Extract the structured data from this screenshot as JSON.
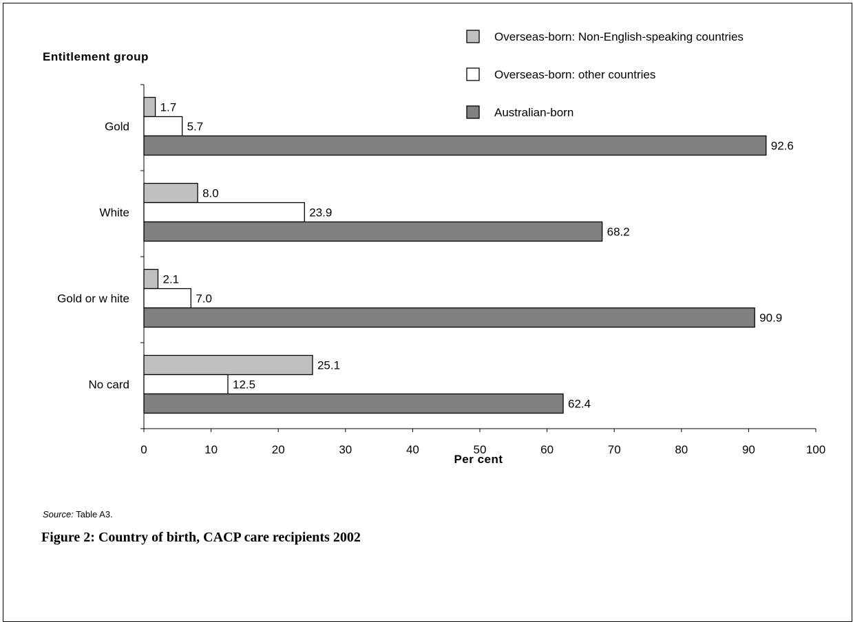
{
  "chart_data": {
    "type": "bar",
    "orientation": "horizontal",
    "ylabel": "Entitlement group",
    "xlabel": "Per cent",
    "xlim": [
      0,
      100
    ],
    "xticks": [
      0,
      10,
      20,
      30,
      40,
      50,
      60,
      70,
      80,
      90,
      100
    ],
    "categories": [
      "Gold",
      "White",
      "Gold or w hite",
      "No card"
    ],
    "series": [
      {
        "name": "Overseas-born: Non-English-speaking countries",
        "values": [
          1.7,
          8.0,
          2.1,
          25.1
        ],
        "labels": [
          "1.7",
          "8.0",
          "2.1",
          "25.1"
        ],
        "color": "#c0c0c0"
      },
      {
        "name": "Overseas-born: other countries",
        "values": [
          5.7,
          23.9,
          7.0,
          12.5
        ],
        "labels": [
          "5.7",
          "23.9",
          "7.0",
          "12.5"
        ],
        "color": "#ffffff"
      },
      {
        "name": "Australian-born",
        "values": [
          92.6,
          68.2,
          90.9,
          62.4
        ],
        "labels": [
          "92.6",
          "68.2",
          "90.9",
          "62.4"
        ],
        "color": "#808080"
      }
    ],
    "grid": false,
    "legend_position": "top-right"
  },
  "source": {
    "prefix": "Source:",
    "text": " Table A3."
  },
  "caption": "Figure 2: Country of birth, CACP care recipients 2002"
}
